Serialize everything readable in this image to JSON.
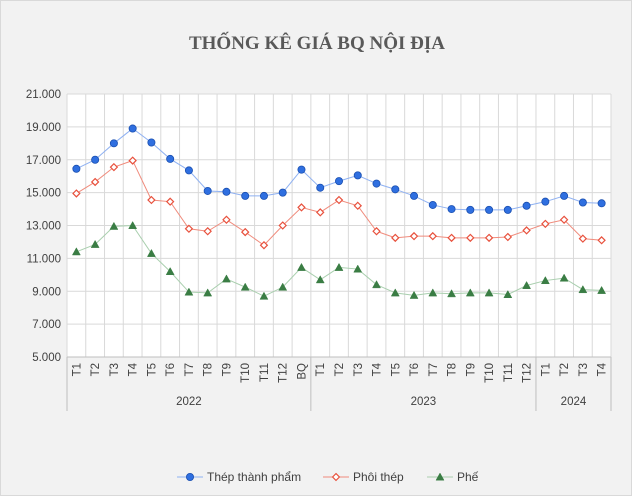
{
  "chart_data": {
    "type": "line",
    "title": "THỐNG  KÊ GIÁ  BQ NỘI ĐỊA",
    "categories": [
      "T1",
      "T2",
      "T3",
      "T4",
      "T5",
      "T6",
      "T7",
      "T8",
      "T9",
      "T10",
      "T11",
      "T12",
      "BQ",
      "T1",
      "T2",
      "T3",
      "T4",
      "T5",
      "T6",
      "T7",
      "T8",
      "T9",
      "T10",
      "T11",
      "T12",
      "T1",
      "T2",
      "T3",
      "T4"
    ],
    "groups": [
      {
        "label": "2022",
        "count": 13
      },
      {
        "label": "2023",
        "count": 12
      },
      {
        "label": "2024",
        "count": 4
      }
    ],
    "ylim": [
      5000,
      21000
    ],
    "yticks": [
      "5.000",
      "7.000",
      "9.000",
      "11.000",
      "13.000",
      "15.000",
      "17.000",
      "19.000",
      "21.000"
    ],
    "ytick_values": [
      5000,
      7000,
      9000,
      11000,
      13000,
      15000,
      17000,
      19000,
      21000
    ],
    "grid": true,
    "legend_position": "bottom",
    "series": [
      {
        "name": "Thép thành phẩm",
        "color": "#4a86e8",
        "marker": "circle",
        "values": [
          16450,
          17000,
          18000,
          18900,
          18050,
          17050,
          16350,
          15100,
          15050,
          14800,
          14800,
          15000,
          16400,
          15300,
          15700,
          16050,
          15550,
          15200,
          14800,
          14250,
          14000,
          13950,
          13950,
          13950,
          14200,
          14450,
          14800,
          14400,
          14350
        ]
      },
      {
        "name": "Phôi thép",
        "color": "#e8513d",
        "marker": "diamond",
        "values": [
          14950,
          15650,
          16550,
          16950,
          14550,
          14450,
          12800,
          12650,
          13350,
          12600,
          11800,
          13000,
          14100,
          13800,
          14550,
          14200,
          12650,
          12250,
          12350,
          12350,
          12250,
          12250,
          12250,
          12300,
          12700,
          13100,
          13350,
          12200,
          12100
        ]
      },
      {
        "name": "Phế",
        "color": "#3a7d44",
        "marker": "triangle",
        "values": [
          11400,
          11850,
          12950,
          13000,
          11300,
          10200,
          8950,
          8900,
          9750,
          9250,
          8700,
          9250,
          10450,
          9700,
          10450,
          10350,
          9400,
          8900,
          8750,
          8900,
          8850,
          8900,
          8900,
          8800,
          9350,
          9650,
          9800,
          9100,
          9050
        ]
      }
    ]
  }
}
